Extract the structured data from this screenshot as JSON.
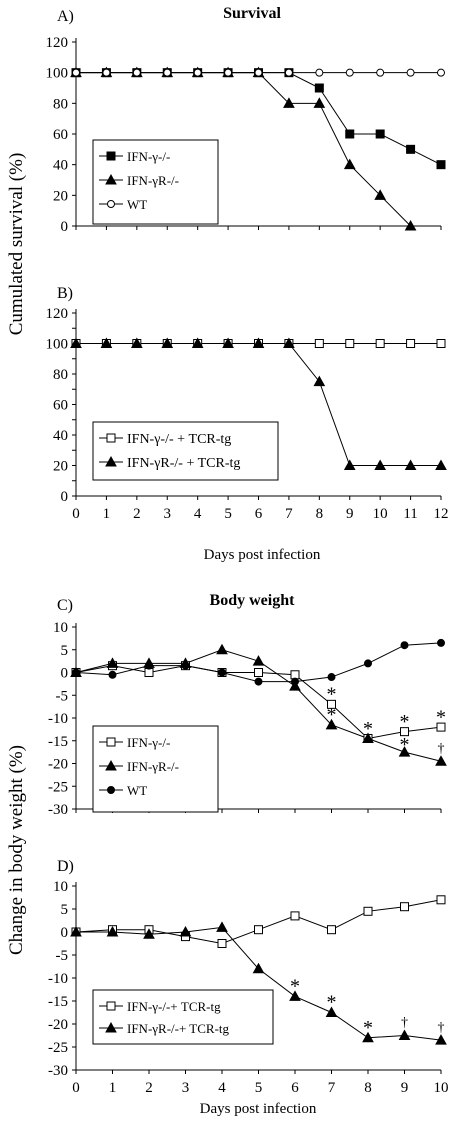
{
  "figure": {
    "survival_ylabel": "Cumulated survival (%)",
    "weight_ylabel": "Change in body weight (%)",
    "survival_xlabel": "Days  post infection",
    "weight_xlabel": "Days  post infection"
  },
  "chart_data": [
    {
      "type": "line",
      "panel": "A)",
      "title": "Survival",
      "xlim": [
        0,
        12
      ],
      "ylim": [
        0,
        120
      ],
      "yticks": [
        0,
        20,
        40,
        60,
        80,
        100,
        120
      ],
      "legend_position": "left",
      "series": [
        {
          "name": "IFN-γ-/-",
          "marker": "square-filled",
          "x": [
            0,
            1,
            2,
            3,
            4,
            5,
            6,
            7,
            8,
            9,
            10,
            11,
            12
          ],
          "y": [
            100,
            100,
            100,
            100,
            100,
            100,
            100,
            100,
            90,
            60,
            60,
            50,
            40
          ]
        },
        {
          "name": "IFN-γR-/-",
          "marker": "triangle-filled",
          "x": [
            0,
            1,
            2,
            3,
            4,
            5,
            6,
            7,
            8,
            9,
            10,
            11
          ],
          "y": [
            100,
            100,
            100,
            100,
            100,
            100,
            100,
            80,
            80,
            40,
            20,
            0
          ]
        },
        {
          "name": "WT",
          "marker": "circle-open",
          "x": [
            0,
            1,
            2,
            3,
            4,
            5,
            6,
            7,
            8,
            9,
            10,
            11,
            12
          ],
          "y": [
            100,
            100,
            100,
            100,
            100,
            100,
            100,
            100,
            100,
            100,
            100,
            100,
            100
          ]
        }
      ],
      "annotations": []
    },
    {
      "type": "line",
      "panel": "B)",
      "title": "",
      "xlim": [
        0,
        12
      ],
      "ylim": [
        0,
        120
      ],
      "yticks": [
        0,
        10,
        20,
        30,
        40,
        50,
        60,
        70,
        80,
        90,
        100,
        110,
        120
      ],
      "xticks": [
        0,
        1,
        2,
        3,
        4,
        5,
        6,
        7,
        8,
        9,
        10,
        11,
        12
      ],
      "legend_position": "bottom-left",
      "series": [
        {
          "name": "IFN-γ-/- + TCR-tg",
          "marker": "square-open",
          "x": [
            0,
            1,
            2,
            3,
            4,
            5,
            6,
            7,
            8,
            9,
            10,
            11,
            12
          ],
          "y": [
            100,
            100,
            100,
            100,
            100,
            100,
            100,
            100,
            100,
            100,
            100,
            100,
            100
          ]
        },
        {
          "name": "IFN-γR-/- + TCR-tg",
          "marker": "triangle-filled",
          "x": [
            0,
            1,
            2,
            3,
            4,
            5,
            6,
            7,
            8,
            9,
            10,
            11,
            12
          ],
          "y": [
            100,
            100,
            100,
            100,
            100,
            100,
            100,
            100,
            75,
            20,
            20,
            20,
            20
          ]
        }
      ],
      "annotations": []
    },
    {
      "type": "line",
      "panel": "C)",
      "title": "Body  weight",
      "xlim": [
        0,
        10
      ],
      "ylim": [
        -30,
        10
      ],
      "yticks": [
        -30,
        -25,
        -20,
        -15,
        -10,
        -5,
        0,
        5,
        10
      ],
      "legend_position": "bottom-left",
      "series": [
        {
          "name": "IFN-γ-/-",
          "marker": "square-open",
          "x": [
            0,
            1,
            2,
            3,
            4,
            5,
            6,
            7,
            8,
            9,
            10
          ],
          "y": [
            0,
            1.5,
            0,
            1.5,
            0,
            0,
            -0.5,
            -7,
            -14.5,
            -13,
            -12
          ]
        },
        {
          "name": "IFN-γR-/-",
          "marker": "triangle-filled",
          "x": [
            0,
            1,
            2,
            3,
            4,
            5,
            6,
            7,
            8,
            9,
            10
          ],
          "y": [
            0,
            2,
            2,
            2,
            5,
            2.5,
            -3,
            -11.5,
            -14.5,
            -17.5,
            -19.5
          ]
        },
        {
          "name": "WT",
          "marker": "circle-filled",
          "x": [
            0,
            1,
            2,
            3,
            4,
            5,
            6,
            7,
            8,
            9,
            10
          ],
          "y": [
            0,
            -0.5,
            1.5,
            1.5,
            0,
            -2,
            -2,
            -1,
            2,
            6,
            6.5
          ]
        }
      ],
      "annotations": [
        {
          "text": "*",
          "x": 7,
          "y": -4
        },
        {
          "text": "*",
          "x": 7,
          "y": -8.5
        },
        {
          "text": "*",
          "x": 8,
          "y": -11.5
        },
        {
          "text": "*",
          "x": 9,
          "y": -10
        },
        {
          "text": "*",
          "x": 9,
          "y": -15
        },
        {
          "text": "*",
          "x": 10,
          "y": -9
        },
        {
          "text": "†",
          "x": 10,
          "y": -16.5
        }
      ]
    },
    {
      "type": "line",
      "panel": "D)",
      "title": "",
      "xlim": [
        0,
        10
      ],
      "ylim": [
        -30,
        10
      ],
      "yticks": [
        -30,
        -25,
        -20,
        -15,
        -10,
        -5,
        0,
        5,
        10
      ],
      "xticks": [
        0,
        1,
        2,
        3,
        4,
        5,
        6,
        7,
        8,
        9,
        10
      ],
      "legend_position": "bottom-left",
      "series": [
        {
          "name": "IFN-γ-/-+ TCR-tg",
          "marker": "square-open",
          "x": [
            0,
            1,
            2,
            3,
            4,
            5,
            6,
            7,
            8,
            9,
            10
          ],
          "y": [
            0,
            0.5,
            0.5,
            -1,
            -2.5,
            0.5,
            3.5,
            0.5,
            4.5,
            5.5,
            7
          ]
        },
        {
          "name": "IFN-γR-/-+ TCR-tg",
          "marker": "triangle-filled",
          "x": [
            0,
            1,
            2,
            3,
            4,
            5,
            6,
            7,
            8,
            9,
            10
          ],
          "y": [
            0,
            0,
            -0.5,
            0,
            1,
            -8,
            -14,
            -17.5,
            -23,
            -22.5,
            -23.5
          ]
        }
      ],
      "annotations": [
        {
          "text": "*",
          "x": 6,
          "y": -11
        },
        {
          "text": "*",
          "x": 7,
          "y": -14.5
        },
        {
          "text": "*",
          "x": 8,
          "y": -20
        },
        {
          "text": "†",
          "x": 9,
          "y": -19.5
        },
        {
          "text": "†",
          "x": 10,
          "y": -20.5
        }
      ]
    }
  ]
}
